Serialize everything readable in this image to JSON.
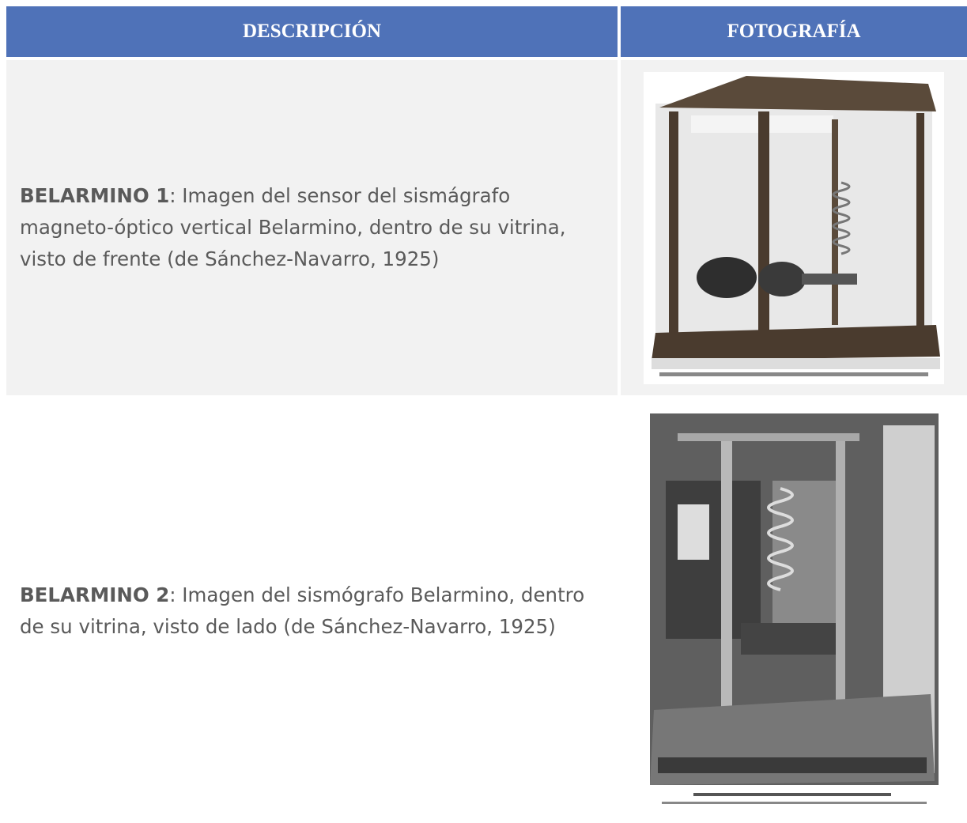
{
  "table": {
    "headers": [
      "DESCRIPCIÓN",
      "FOTOGRAFÍA"
    ],
    "rows": [
      {
        "label": "BELARMINO 1",
        "description": ": Imagen del sensor del sismágrafo magneto-óptico vertical Belarmino, dentro de su vitrina, visto de frente (de Sánchez-Navarro, 1925)"
      },
      {
        "label": "BELARMINO 2",
        "description": ": Imagen del sismógrafo Belarmino, dentro de su vitrina, visto de lado (de Sánchez-Navarro, 1925)"
      }
    ]
  }
}
